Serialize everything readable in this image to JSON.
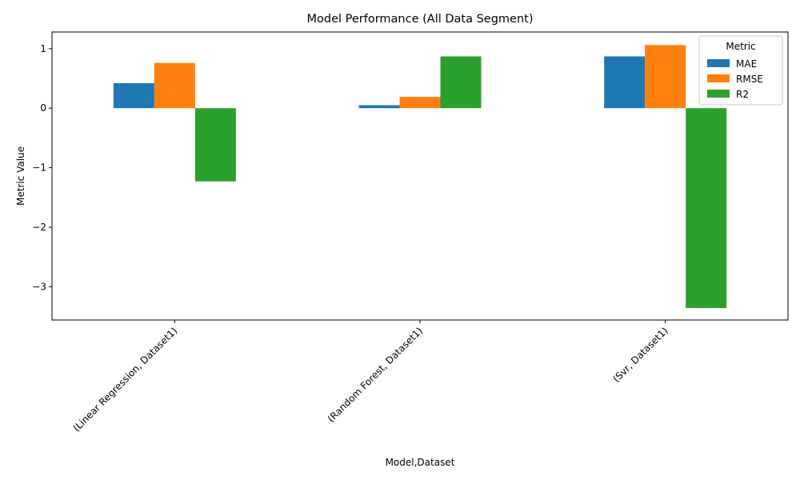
{
  "chart_data": {
    "type": "bar",
    "title": "Model Performance (All Data Segment)",
    "xlabel": "Model,Dataset",
    "ylabel": "Metric Value",
    "categories": [
      "(Linear Regression, Dataset1)",
      "(Random Forest, Dataset1)",
      "(Svr, Dataset1)"
    ],
    "series": [
      {
        "name": "MAE",
        "color": "#1f77b4",
        "values": [
          0.42,
          0.05,
          0.87
        ]
      },
      {
        "name": "RMSE",
        "color": "#ff7f0e",
        "values": [
          0.76,
          0.19,
          1.06
        ]
      },
      {
        "name": "R2",
        "color": "#2ca02c",
        "values": [
          -1.23,
          0.87,
          -3.36
        ]
      }
    ],
    "ylim": [
      -3.56,
      1.28
    ],
    "yticks": [
      1,
      0,
      -1,
      -2,
      -3
    ],
    "ytick_labels": [
      "1",
      "0",
      "−1",
      "−2",
      "−3"
    ],
    "legend": {
      "title": "Metric",
      "placement": "top-right"
    },
    "grid": false
  }
}
